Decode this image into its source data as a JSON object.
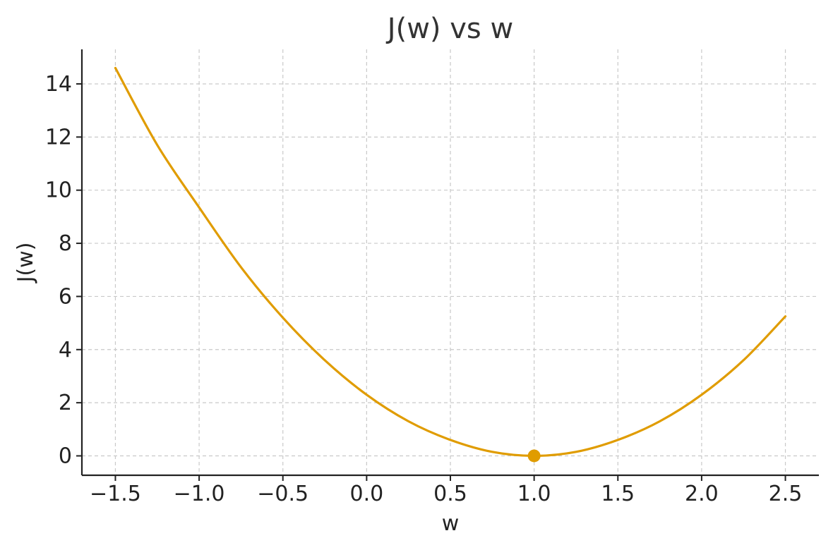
{
  "chart_data": {
    "type": "line",
    "title": "J(w) vs w",
    "xlabel": "w",
    "ylabel": "J(w)",
    "xlim": [
      -1.7,
      2.7
    ],
    "ylim": [
      -0.73,
      15.3
    ],
    "x_ticks": [
      -1.5,
      -1.0,
      -0.5,
      0.0,
      0.5,
      1.0,
      1.5,
      2.0,
      2.5
    ],
    "x_tick_labels": [
      "−1.5",
      "−1.0",
      "−0.5",
      "0.0",
      "0.5",
      "1.0",
      "1.5",
      "2.0",
      "2.5"
    ],
    "y_ticks": [
      0,
      2,
      4,
      6,
      8,
      10,
      12,
      14
    ],
    "y_tick_labels": [
      "0",
      "2",
      "4",
      "6",
      "8",
      "10",
      "12",
      "14"
    ],
    "grid": true,
    "series": [
      {
        "color": "#e09c00",
        "x": [
          -1.5,
          -1.25,
          -1.0,
          -0.75,
          -0.5,
          -0.25,
          0.0,
          0.25,
          0.5,
          0.75,
          1.0,
          1.25,
          1.5,
          1.75,
          2.0,
          2.25,
          2.5
        ],
        "y": [
          14.6,
          11.7,
          9.35,
          7.1,
          5.2,
          3.6,
          2.3,
          1.3,
          0.6,
          0.15,
          0.0,
          0.15,
          0.6,
          1.3,
          2.3,
          3.6,
          5.25
        ]
      }
    ],
    "markers": [
      {
        "x": 1.0,
        "y": 0.0,
        "color": "#e09c00"
      }
    ]
  }
}
